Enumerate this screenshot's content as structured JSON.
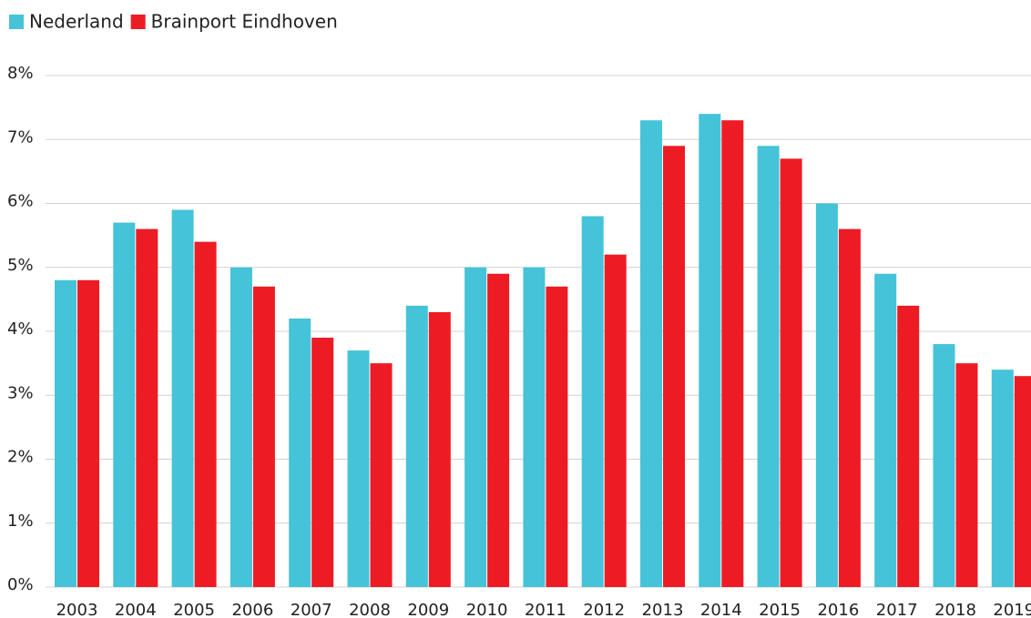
{
  "chart_data": {
    "type": "bar",
    "categories": [
      "2003",
      "2004",
      "2005",
      "2006",
      "2007",
      "2008",
      "2009",
      "2010",
      "2011",
      "2012",
      "2013",
      "2014",
      "2015",
      "2016",
      "2017",
      "2018",
      "2019"
    ],
    "series": [
      {
        "name": "Nederland",
        "color": "#45c3d8",
        "values": [
          4.8,
          5.7,
          5.9,
          5.0,
          4.2,
          3.7,
          4.4,
          5.0,
          5.0,
          5.8,
          7.3,
          7.4,
          6.9,
          6.0,
          4.9,
          3.8,
          3.4
        ]
      },
      {
        "name": "Brainport Eindhoven",
        "color": "#ed1c24",
        "values": [
          4.8,
          5.6,
          5.4,
          4.7,
          3.9,
          3.5,
          4.3,
          4.9,
          4.7,
          5.2,
          6.9,
          7.3,
          6.7,
          5.6,
          4.4,
          3.5,
          3.3
        ]
      }
    ],
    "ylim": [
      0,
      8
    ],
    "yticks": [
      {
        "value": 0,
        "label": "0%"
      },
      {
        "value": 1,
        "label": "1%"
      },
      {
        "value": 2,
        "label": "2%"
      },
      {
        "value": 3,
        "label": "3%"
      },
      {
        "value": 4,
        "label": "4%"
      },
      {
        "value": 5,
        "label": "5%"
      },
      {
        "value": 6,
        "label": "6%"
      },
      {
        "value": 7,
        "label": "7%"
      },
      {
        "value": 8,
        "label": "8%"
      }
    ],
    "grid": true,
    "legend": "top-left"
  }
}
